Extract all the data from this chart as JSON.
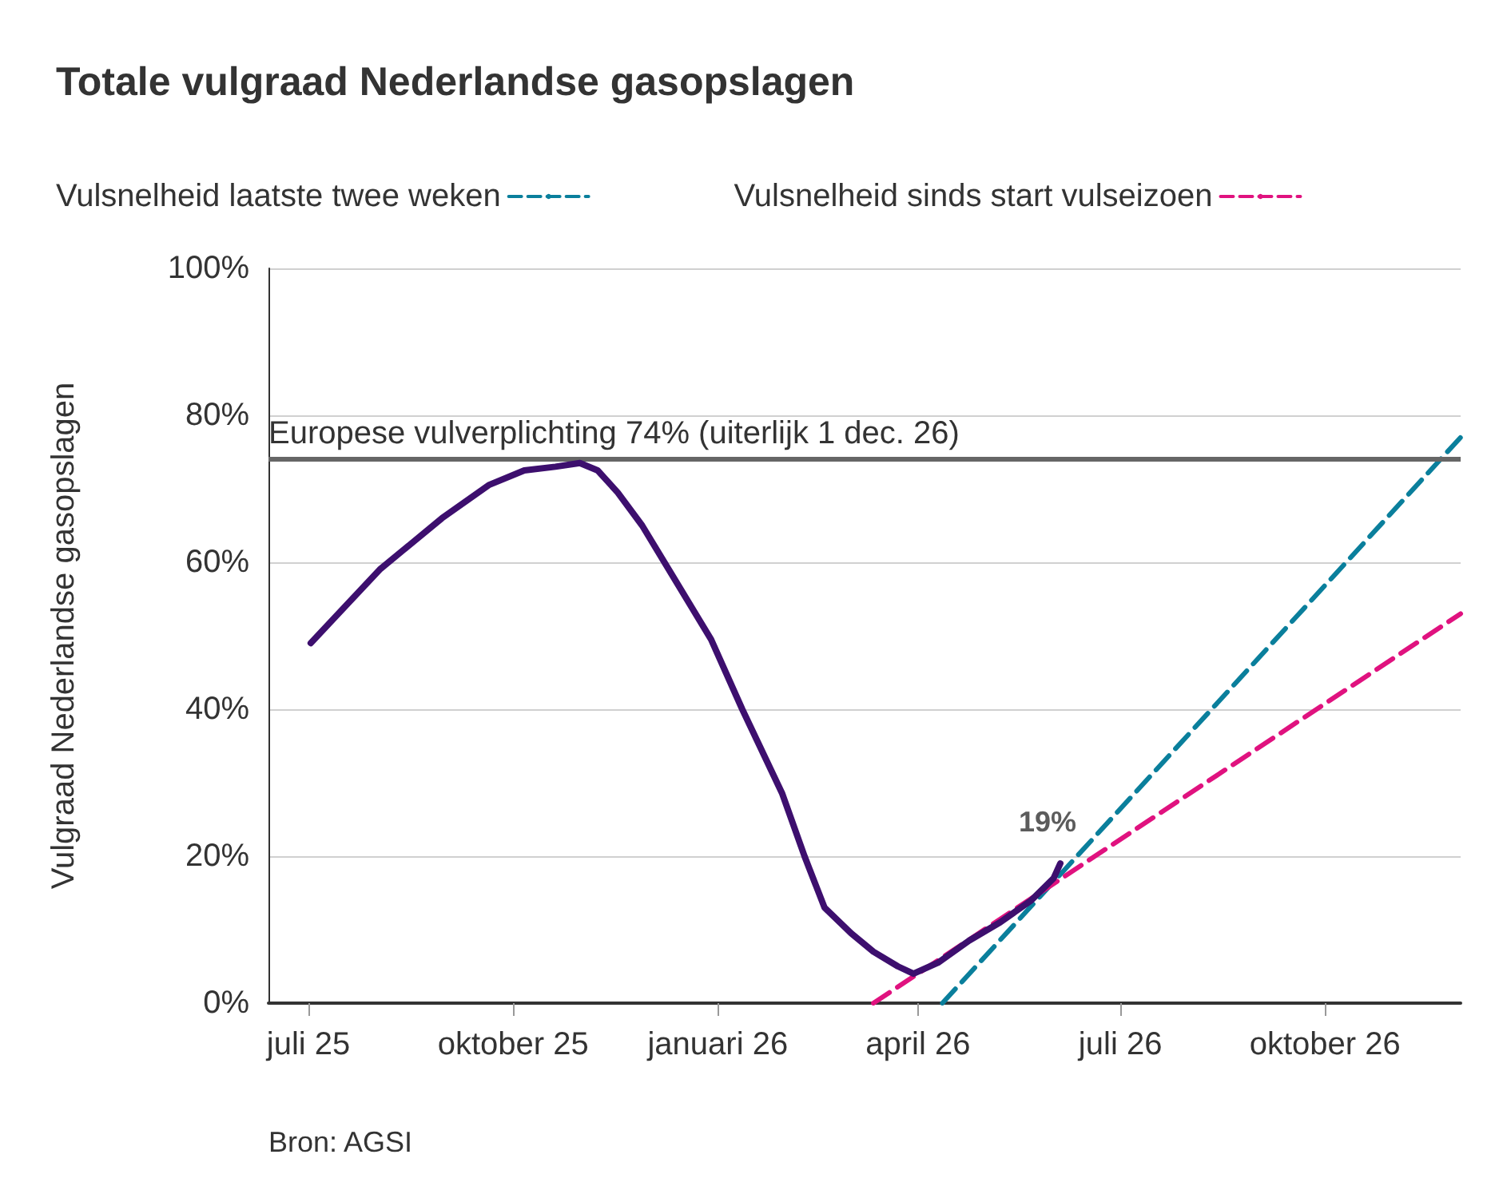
{
  "chart_data": {
    "type": "line",
    "title": "Totale vulgraad Nederlandse gasopslagen",
    "ylabel": "Vulgraad Nederlandse gasopslagen",
    "xlim": [
      "2025-06-13",
      "2026-12-01"
    ],
    "xticks": [
      {
        "value": "2025-07-01",
        "label": "juli 25"
      },
      {
        "value": "2025-10-01",
        "label": "oktober 25"
      },
      {
        "value": "2026-01-01",
        "label": "januari 26"
      },
      {
        "value": "2026-04-01",
        "label": "april 26"
      },
      {
        "value": "2026-07-01",
        "label": "juli 26"
      },
      {
        "value": "2026-10-01",
        "label": "oktober 26"
      }
    ],
    "ylim": [
      0,
      100
    ],
    "yticks": [
      {
        "value": 0,
        "label": "0%"
      },
      {
        "value": 20,
        "label": "20%"
      },
      {
        "value": 40,
        "label": "40%"
      },
      {
        "value": 60,
        "label": "60%"
      },
      {
        "value": 80,
        "label": "80%"
      },
      {
        "value": 100,
        "label": "100%"
      }
    ],
    "series": [
      {
        "color": "#3d0f6e",
        "line_style": "solid",
        "x": [
          "2025-07-02",
          "2025-08-02",
          "2025-08-30",
          "2025-09-20",
          "2025-10-06",
          "2025-10-20",
          "2025-10-31",
          "2025-11-08",
          "2025-11-17",
          "2025-11-28",
          "2025-12-12",
          "2025-12-29",
          "2026-01-12",
          "2026-01-30",
          "2026-02-09",
          "2026-02-18",
          "2026-03-02",
          "2026-03-12",
          "2026-03-23",
          "2026-03-30",
          "2026-04-10",
          "2026-04-24",
          "2026-05-08",
          "2026-05-22",
          "2026-06-01",
          "2026-06-04"
        ],
        "values": [
          49,
          59,
          66,
          70.5,
          72.5,
          73,
          73.5,
          72.5,
          69.5,
          65,
          58,
          49.5,
          40,
          28.5,
          20,
          13,
          9.5,
          7,
          5,
          4,
          5.5,
          8.5,
          11,
          14,
          17,
          19
        ]
      },
      {
        "name": "Vulsnelheid laatste twee weken",
        "color": "#0a7f9c",
        "line_style": "dashed",
        "x": [
          "2026-04-12",
          "2026-12-01"
        ],
        "values": [
          0,
          77
        ]
      },
      {
        "name": "Vulsnelheid sinds start vulseizoen",
        "color": "#e0127f",
        "line_style": "dashed",
        "x": [
          "2026-03-12",
          "2026-12-01"
        ],
        "values": [
          0,
          53
        ]
      }
    ],
    "ref_lines": [
      {
        "axis": "y",
        "value": 74,
        "label": "Europese vulverplichting 74% (uiterlijk 1 dec. 26)",
        "color": "#666666"
      }
    ],
    "annotations": [
      {
        "text": "19%",
        "x": "2026-06-04",
        "y": 19
      },
      "Bron: AGSI"
    ],
    "grid": "y",
    "legend": "top",
    "marker": "none"
  }
}
